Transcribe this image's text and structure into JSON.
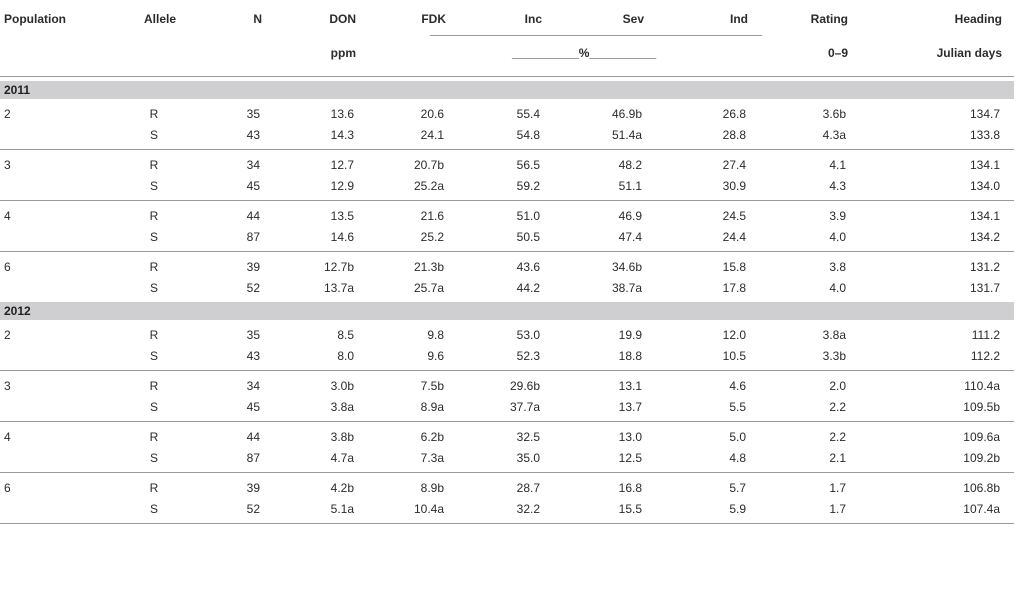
{
  "header": {
    "population": "Population",
    "allele": "Allele",
    "n": "N",
    "don": "DON",
    "fdk": "FDK",
    "inc": "Inc",
    "sev": "Sev",
    "ind": "Ind",
    "rating": "Rating",
    "heading": "Heading",
    "don_unit": "ppm",
    "percent_unit": "__________%__________",
    "rating_unit": "0–9",
    "heading_unit": "Julian days"
  },
  "years": [
    {
      "year": "2011",
      "groups": [
        {
          "population": "2",
          "rows": [
            {
              "allele": "R",
              "n": "35",
              "don": "13.6",
              "fdk": "20.6",
              "inc": "55.4",
              "sev": "46.9b",
              "ind": "26.8",
              "rating": "3.6b",
              "heading": "134.7"
            },
            {
              "allele": "S",
              "n": "43",
              "don": "14.3",
              "fdk": "24.1",
              "inc": "54.8",
              "sev": "51.4a",
              "ind": "28.8",
              "rating": "4.3a",
              "heading": "133.8"
            }
          ]
        },
        {
          "population": "3",
          "rows": [
            {
              "allele": "R",
              "n": "34",
              "don": "12.7",
              "fdk": "20.7b",
              "inc": "56.5",
              "sev": "48.2",
              "ind": "27.4",
              "rating": "4.1",
              "heading": "134.1"
            },
            {
              "allele": "S",
              "n": "45",
              "don": "12.9",
              "fdk": "25.2a",
              "inc": "59.2",
              "sev": "51.1",
              "ind": "30.9",
              "rating": "4.3",
              "heading": "134.0"
            }
          ]
        },
        {
          "population": "4",
          "rows": [
            {
              "allele": "R",
              "n": "44",
              "don": "13.5",
              "fdk": "21.6",
              "inc": "51.0",
              "sev": "46.9",
              "ind": "24.5",
              "rating": "3.9",
              "heading": "134.1"
            },
            {
              "allele": "S",
              "n": "87",
              "don": "14.6",
              "fdk": "25.2",
              "inc": "50.5",
              "sev": "47.4",
              "ind": "24.4",
              "rating": "4.0",
              "heading": "134.2"
            }
          ]
        },
        {
          "population": "6",
          "rows": [
            {
              "allele": "R",
              "n": "39",
              "don": "12.7b",
              "fdk": "21.3b",
              "inc": "43.6",
              "sev": "34.6b",
              "ind": "15.8",
              "rating": "3.8",
              "heading": "131.2"
            },
            {
              "allele": "S",
              "n": "52",
              "don": "13.7a",
              "fdk": "25.7a",
              "inc": "44.2",
              "sev": "38.7a",
              "ind": "17.8",
              "rating": "4.0",
              "heading": "131.7"
            }
          ]
        }
      ]
    },
    {
      "year": "2012",
      "groups": [
        {
          "population": "2",
          "rows": [
            {
              "allele": "R",
              "n": "35",
              "don": "8.5",
              "fdk": "9.8",
              "inc": "53.0",
              "sev": "19.9",
              "ind": "12.0",
              "rating": "3.8a",
              "heading": "111.2"
            },
            {
              "allele": "S",
              "n": "43",
              "don": "8.0",
              "fdk": "9.6",
              "inc": "52.3",
              "sev": "18.8",
              "ind": "10.5",
              "rating": "3.3b",
              "heading": "112.2"
            }
          ]
        },
        {
          "population": "3",
          "rows": [
            {
              "allele": "R",
              "n": "34",
              "don": "3.0b",
              "fdk": "7.5b",
              "inc": "29.6b",
              "sev": "13.1",
              "ind": "4.6",
              "rating": "2.0",
              "heading": "110.4a"
            },
            {
              "allele": "S",
              "n": "45",
              "don": "3.8a",
              "fdk": "8.9a",
              "inc": "37.7a",
              "sev": "13.7",
              "ind": "5.5",
              "rating": "2.2",
              "heading": "109.5b"
            }
          ]
        },
        {
          "population": "4",
          "rows": [
            {
              "allele": "R",
              "n": "44",
              "don": "3.8b",
              "fdk": "6.2b",
              "inc": "32.5",
              "sev": "13.0",
              "ind": "5.0",
              "rating": "2.2",
              "heading": "109.6a"
            },
            {
              "allele": "S",
              "n": "87",
              "don": "4.7a",
              "fdk": "7.3a",
              "inc": "35.0",
              "sev": "12.5",
              "ind": "4.8",
              "rating": "2.1",
              "heading": "109.2b"
            }
          ]
        },
        {
          "population": "6",
          "rows": [
            {
              "allele": "R",
              "n": "39",
              "don": "4.2b",
              "fdk": "8.9b",
              "inc": "28.7",
              "sev": "16.8",
              "ind": "5.7",
              "rating": "1.7",
              "heading": "106.8b"
            },
            {
              "allele": "S",
              "n": "52",
              "don": "5.1a",
              "fdk": "10.4a",
              "inc": "32.2",
              "sev": "15.5",
              "ind": "5.9",
              "rating": "1.7",
              "heading": "107.4a"
            }
          ]
        }
      ]
    }
  ]
}
